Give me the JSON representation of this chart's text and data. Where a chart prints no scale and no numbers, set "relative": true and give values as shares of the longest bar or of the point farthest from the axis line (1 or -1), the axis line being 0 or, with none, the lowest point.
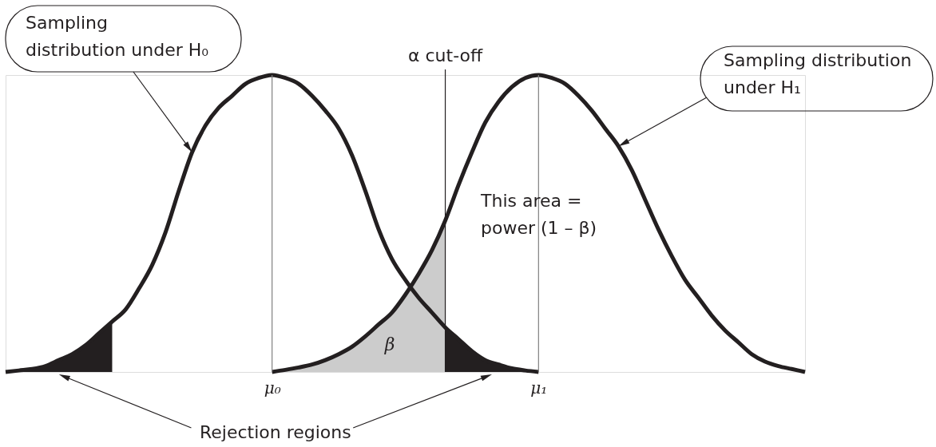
{
  "chart_data": {
    "type": "line",
    "relative": true,
    "categories": [
      null,
      null,
      null,
      null,
      null,
      null,
      null,
      null,
      null,
      null,
      null,
      null,
      null,
      null,
      null,
      null,
      null,
      null,
      null,
      null,
      "μ₀",
      null,
      null,
      null,
      null,
      null,
      null,
      null,
      null,
      null,
      null,
      null,
      null,
      null,
      null,
      null,
      null,
      null,
      null,
      null,
      "μ₁",
      null,
      null,
      null,
      null,
      null,
      null,
      null,
      null,
      null,
      null,
      null,
      null,
      null,
      null,
      null,
      null,
      null,
      null,
      null,
      null
    ],
    "series": [
      {
        "type": "area",
        "color": "#231f20",
        "values": [
          0,
          0.005,
          0.01,
          0.02,
          0.04,
          0.06,
          0.09,
          0.13,
          0.17,
          null,
          null,
          null,
          null,
          null,
          null,
          null,
          null,
          null,
          null,
          null,
          null,
          null,
          null,
          null,
          null,
          null,
          null,
          null,
          null,
          null,
          null,
          null,
          null,
          null,
          null,
          null,
          null,
          null,
          null,
          null,
          null,
          null,
          null,
          null,
          null,
          null,
          null,
          null,
          null,
          null,
          null,
          null,
          null,
          null,
          null,
          null,
          null,
          null,
          null,
          null,
          null
        ]
      },
      {
        "type": "area",
        "name": "β",
        "color": "#cccccc",
        "values": [
          null,
          null,
          null,
          null,
          null,
          null,
          null,
          null,
          null,
          null,
          null,
          null,
          null,
          null,
          null,
          null,
          null,
          null,
          null,
          null,
          0,
          0.007,
          0.015,
          0.025,
          0.04,
          0.06,
          0.085,
          0.12,
          0.16,
          0.2,
          0.26,
          0.33,
          0.41,
          0.51,
          null,
          null,
          null,
          null,
          null,
          null,
          null,
          null,
          null,
          null,
          null,
          null,
          null,
          null,
          null,
          null,
          null,
          null,
          null,
          null,
          null,
          null,
          null,
          null,
          null,
          null,
          null
        ]
      },
      {
        "type": "area",
        "color": "#231f20",
        "values": [
          null,
          null,
          null,
          null,
          null,
          null,
          null,
          null,
          null,
          null,
          null,
          null,
          null,
          null,
          null,
          null,
          null,
          null,
          null,
          null,
          null,
          null,
          null,
          null,
          null,
          null,
          null,
          null,
          null,
          null,
          null,
          null,
          null,
          0.15,
          0.11,
          0.07,
          0.04,
          0.025,
          0.012,
          0.005,
          0,
          null,
          null,
          null,
          null,
          null,
          null,
          null,
          null,
          null,
          null,
          null,
          null,
          null,
          null,
          null,
          null,
          null,
          null,
          null,
          null
        ]
      },
      {
        "color": "#231f20",
        "values": [
          0,
          0.005,
          0.01,
          0.02,
          0.04,
          0.06,
          0.09,
          0.13,
          0.17,
          0.21,
          0.28,
          0.36,
          0.47,
          0.61,
          0.74,
          0.83,
          0.89,
          0.93,
          0.97,
          0.99,
          1,
          0.99,
          0.97,
          0.93,
          0.88,
          0.82,
          0.73,
          0.61,
          0.48,
          0.38,
          0.31,
          0.25,
          0.2,
          0.15,
          0.11,
          0.07,
          0.04,
          0.025,
          0.012,
          0.005,
          0,
          null,
          null,
          null,
          null,
          null,
          null,
          null,
          null,
          null,
          null,
          null,
          null,
          null,
          null,
          null,
          null,
          null,
          null,
          null,
          null
        ]
      },
      {
        "color": "#231f20",
        "values": [
          null,
          null,
          null,
          null,
          null,
          null,
          null,
          null,
          null,
          null,
          null,
          null,
          null,
          null,
          null,
          null,
          null,
          null,
          null,
          null,
          0,
          0.007,
          0.015,
          0.025,
          0.04,
          0.06,
          0.085,
          0.12,
          0.16,
          0.2,
          0.26,
          0.33,
          0.41,
          0.51,
          0.63,
          0.74,
          0.84,
          0.91,
          0.96,
          0.99,
          1,
          0.99,
          0.97,
          0.93,
          0.88,
          0.82,
          0.76,
          0.68,
          0.58,
          0.48,
          0.39,
          0.31,
          0.25,
          0.19,
          0.14,
          0.1,
          0.06,
          0.035,
          0.02,
          0.01,
          0
        ]
      }
    ],
    "ref_lines": [
      {
        "axis": "x",
        "value": "μ₀",
        "color": "#808080"
      },
      {
        "axis": "x",
        "value": "μ₁",
        "color": "#808080"
      }
    ],
    "annotations": [
      "Sampling distribution under H₀",
      "α cut-off",
      "Sampling distribution under H₁",
      "This area = power (1 – β)",
      "Rejection regions"
    ]
  }
}
